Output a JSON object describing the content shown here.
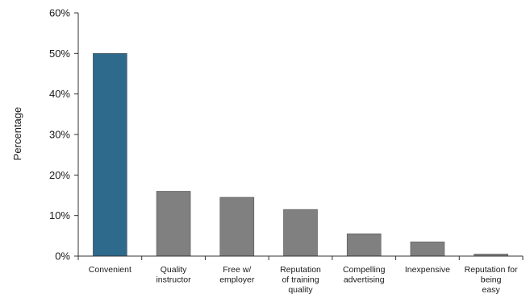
{
  "chart_data": {
    "type": "bar",
    "title": "",
    "xlabel": "",
    "ylabel": "Percentage",
    "ylim": [
      0,
      60
    ],
    "yticks": [
      0,
      10,
      20,
      30,
      40,
      50,
      60
    ],
    "ytick_labels": [
      "0%",
      "10%",
      "20%",
      "30%",
      "40%",
      "50%",
      "60%"
    ],
    "grid": false,
    "legend": "none",
    "categories": [
      [
        "Convenient"
      ],
      [
        "Quality",
        "instructor"
      ],
      [
        "Free w/",
        "employer"
      ],
      [
        "Reputation",
        "of training",
        "quality"
      ],
      [
        "Compelling",
        "advertising"
      ],
      [
        "Inexpensive"
      ],
      [
        "Reputation  for",
        "being",
        "easy"
      ]
    ],
    "values": [
      50,
      16,
      14.5,
      11.5,
      5.5,
      3.5,
      0.5
    ],
    "colors": {
      "highlight": "#2e6a8c",
      "default": "#808080",
      "axis": "#333333"
    },
    "highlight_index": 0
  }
}
